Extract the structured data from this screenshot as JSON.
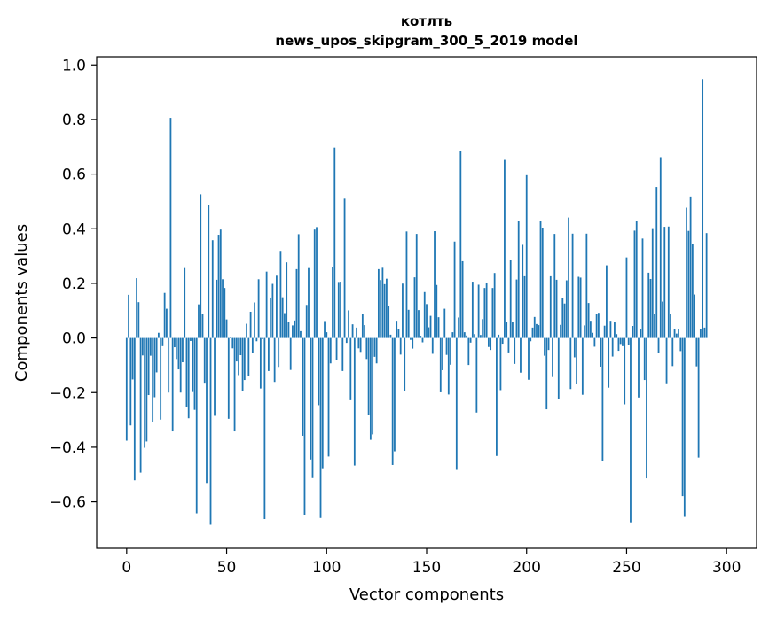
{
  "chart_data": {
    "type": "bar",
    "title_line1": "котлть",
    "title_line2": "news_upos_skipgram_300_5_2019 model",
    "xlabel": "Vector components",
    "ylabel": "Components values",
    "xlim": [
      -15,
      315
    ],
    "ylim": [
      -0.77,
      1.03
    ],
    "xticks": [
      0,
      50,
      100,
      150,
      200,
      250,
      300
    ],
    "yticks": [
      -0.6,
      -0.4,
      -0.2,
      0.0,
      0.2,
      0.4,
      0.6,
      0.8,
      1.0
    ],
    "ytick_labels": [
      "−0.6",
      "−0.4",
      "−0.2",
      "0.0",
      "0.2",
      "0.4",
      "0.6",
      "0.8",
      "1.0"
    ],
    "bar_color": "#1f77b4",
    "x": "0..299 (component index)",
    "values": [
      -0.376,
      0.158,
      -0.32,
      -0.152,
      -0.521,
      0.219,
      0.131,
      -0.493,
      -0.064,
      -0.402,
      -0.379,
      -0.209,
      -0.065,
      -0.308,
      -0.217,
      -0.126,
      0.019,
      -0.299,
      -0.03,
      0.165,
      0.107,
      -0.2,
      0.806,
      -0.342,
      -0.034,
      -0.077,
      -0.115,
      -0.2,
      -0.089,
      0.256,
      -0.252,
      -0.294,
      -0.011,
      -0.198,
      -0.263,
      -0.642,
      0.123,
      0.526,
      0.089,
      -0.164,
      -0.531,
      0.488,
      -0.684,
      0.358,
      -0.285,
      0.213,
      0.378,
      0.397,
      0.215,
      0.183,
      0.068,
      -0.296,
      0.004,
      -0.038,
      -0.342,
      -0.086,
      -0.136,
      -0.063,
      -0.193,
      -0.154,
      0.052,
      -0.139,
      0.096,
      -0.054,
      0.13,
      -0.012,
      0.215,
      -0.185,
      -0.004,
      -0.663,
      0.243,
      -0.121,
      0.148,
      0.198,
      -0.161,
      0.228,
      -0.106,
      0.319,
      0.149,
      0.091,
      0.277,
      0.06,
      -0.117,
      0.046,
      0.064,
      0.252,
      0.38,
      0.025,
      -0.358,
      -0.648,
      0.121,
      0.256,
      -0.445,
      -0.513,
      0.397,
      0.406,
      -0.246,
      -0.659,
      -0.477,
      0.062,
      0.021,
      -0.434,
      -0.093,
      0.26,
      0.697,
      -0.082,
      0.205,
      0.206,
      -0.121,
      0.51,
      -0.018,
      0.101,
      -0.228,
      0.05,
      -0.467,
      0.038,
      -0.038,
      -0.051,
      0.087,
      0.047,
      -0.077,
      -0.283,
      -0.373,
      -0.353,
      -0.069,
      -0.093,
      0.252,
      0.212,
      0.257,
      0.197,
      0.217,
      0.117,
      0.012,
      -0.465,
      -0.415,
      0.063,
      0.032,
      -0.061,
      0.199,
      -0.193,
      0.39,
      0.103,
      -0.007,
      -0.039,
      0.222,
      0.381,
      0.102,
      0.008,
      -0.016,
      0.168,
      0.124,
      0.039,
      0.081,
      -0.058,
      0.391,
      0.194,
      0.076,
      -0.199,
      -0.118,
      0.107,
      -0.062,
      -0.207,
      -0.098,
      0.021,
      0.353,
      -0.483,
      0.075,
      0.683,
      0.281,
      0.021,
      0.009,
      -0.099,
      -0.017,
      0.206,
      0.014,
      -0.273,
      0.195,
      0.011,
      0.069,
      0.183,
      0.203,
      -0.033,
      -0.044,
      0.183,
      0.238,
      -0.432,
      0.012,
      -0.191,
      -0.021,
      0.652,
      0.058,
      -0.053,
      0.286,
      0.059,
      -0.095,
      0.214,
      0.43,
      -0.127,
      0.341,
      0.226,
      0.596,
      -0.153,
      -0.012,
      0.038,
      0.077,
      0.051,
      0.047,
      0.43,
      0.404,
      -0.065,
      -0.261,
      -0.044,
      0.226,
      -0.143,
      0.381,
      0.213,
      -0.225,
      0.048,
      0.145,
      0.126,
      0.211,
      0.441,
      -0.187,
      0.382,
      -0.071,
      -0.168,
      0.224,
      0.221,
      -0.208,
      0.046,
      0.382,
      0.128,
      0.063,
      0.019,
      -0.032,
      0.088,
      0.092,
      -0.105,
      -0.451,
      0.045,
      0.266,
      -0.182,
      0.063,
      -0.068,
      0.057,
      0.014,
      -0.047,
      -0.022,
      -0.03,
      -0.243,
      0.295,
      -0.027,
      -0.675,
      0.044,
      0.393,
      0.428,
      -0.218,
      0.031,
      0.364,
      -0.154,
      -0.514,
      0.239,
      0.216,
      0.402,
      0.089,
      0.553,
      -0.056,
      0.662,
      0.133,
      0.407,
      -0.166,
      0.408,
      0.088,
      -0.103,
      0.031,
      0.016,
      0.031,
      -0.048,
      -0.579,
      -0.655,
      0.477,
      0.392,
      0.518,
      0.343,
      0.159,
      -0.104,
      -0.438,
      0.032,
      0.948,
      0.038,
      0.384
    ]
  }
}
